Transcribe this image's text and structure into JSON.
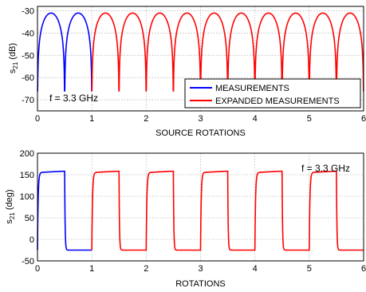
{
  "chart_data": [
    {
      "type": "line",
      "xlabel": "SOURCE ROTATIONS",
      "ylabel_main": "s",
      "ylabel_sub": "21",
      "ylabel_unit": " (dB)",
      "xlim": [
        0,
        6
      ],
      "ylim": [
        -75,
        -28
      ],
      "xticks": [
        "0",
        "1",
        "2",
        "3",
        "4",
        "5",
        "6"
      ],
      "yticks": [
        "-30",
        "-40",
        "-50",
        "-60",
        "-70"
      ],
      "grid": true,
      "annotation": "f = 3.3 GHz",
      "legend": {
        "placement": "bottom-right",
        "entries": [
          "MEASUREMENTS",
          "EXPANDED MEASUREMENTS"
        ]
      },
      "series": [
        {
          "name": "MEASUREMENTS",
          "color": "#0000ff",
          "x_range": [
            0,
            1
          ],
          "shape": "periodic lobes, period 0.5 rotation, peak -31 dB, deep nulls near -75 dB at every half rotation"
        },
        {
          "name": "EXPANDED MEASUREMENTS",
          "color": "#ff0000",
          "x_range": [
            1,
            6
          ],
          "shape": "periodic lobes, period 0.5 rotation, peak -31 dB, deep nulls near -75 dB at every half rotation"
        }
      ]
    },
    {
      "type": "line",
      "xlabel": "ROTATIONS",
      "ylabel_main": "s",
      "ylabel_sub": "21",
      "ylabel_unit": " (deg)",
      "xlim": [
        0,
        6
      ],
      "ylim": [
        -50,
        200
      ],
      "xticks": [
        "0",
        "1",
        "2",
        "3",
        "4",
        "5",
        "6"
      ],
      "yticks": [
        "200",
        "150",
        "100",
        "50",
        "0",
        "-50"
      ],
      "grid": true,
      "annotation": "f = 3.3 GHz",
      "series": [
        {
          "name": "MEASUREMENTS",
          "color": "#0000ff",
          "x_range": [
            0,
            1
          ],
          "shape": "square-wave phase, high ~155 deg, low ~-25 deg, switching every 0.5 rotation"
        },
        {
          "name": "EXPANDED MEASUREMENTS",
          "color": "#ff0000",
          "x_range": [
            1,
            6
          ],
          "shape": "square-wave phase, high ~155 deg, low ~-25 deg, switching every 0.5 rotation"
        }
      ]
    }
  ]
}
